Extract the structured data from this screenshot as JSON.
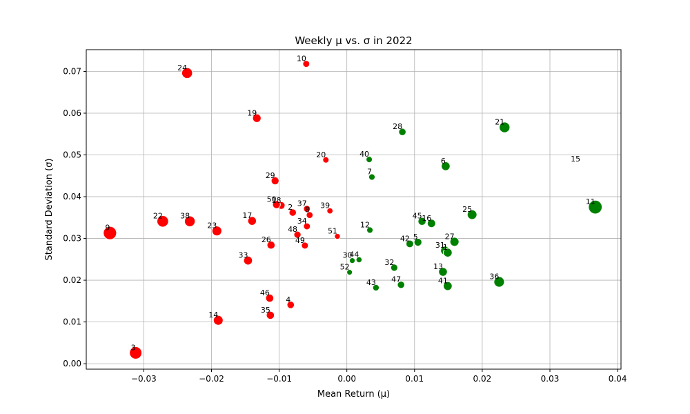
{
  "chart_data": {
    "type": "scatter",
    "title": "Weekly μ vs. σ in 2022",
    "xlabel": "Mean Return (μ)",
    "ylabel": "Standard Deviation (σ)",
    "xlim": [
      -0.0385,
      0.0405
    ],
    "ylim": [
      -0.0013,
      0.0752
    ],
    "grid": true,
    "x_ticks": [
      -0.03,
      -0.02,
      -0.01,
      0.0,
      0.01,
      0.02,
      0.03,
      0.04
    ],
    "x_tick_labels": [
      "−0.03",
      "−0.02",
      "−0.01",
      "0.00",
      "0.01",
      "0.02",
      "0.03",
      "0.04"
    ],
    "y_ticks": [
      0.0,
      0.01,
      0.02,
      0.03,
      0.04,
      0.05,
      0.06,
      0.07
    ],
    "y_tick_labels": [
      "0.00",
      "0.01",
      "0.02",
      "0.03",
      "0.04",
      "0.05",
      "0.06",
      "0.07"
    ],
    "colors": {
      "positive": "#008000",
      "negative": "#ff0000"
    },
    "points": [
      {
        "label": "2",
        "x": -0.008,
        "y": 0.0362
      },
      {
        "label": "3",
        "x": -0.0312,
        "y": 0.0026
      },
      {
        "label": "4",
        "x": -0.0083,
        "y": 0.0141
      },
      {
        "label": "5",
        "x": 0.0105,
        "y": 0.0291
      },
      {
        "label": "6",
        "x": 0.0146,
        "y": 0.0473
      },
      {
        "label": "7",
        "x": 0.0037,
        "y": 0.0447
      },
      {
        "label": "8",
        "x": -0.0055,
        "y": 0.0356
      },
      {
        "label": "9",
        "x": -0.035,
        "y": 0.0313
      },
      {
        "label": "10",
        "x": -0.006,
        "y": 0.0718
      },
      {
        "label": "11",
        "x": 0.0367,
        "y": 0.0375
      },
      {
        "label": "12",
        "x": 0.0034,
        "y": 0.032
      },
      {
        "label": "13",
        "x": 0.0142,
        "y": 0.022
      },
      {
        "label": "14",
        "x": -0.019,
        "y": 0.0104
      },
      {
        "label": "15",
        "x": 0.0345,
        "y": 0.0478
      },
      {
        "label": "16",
        "x": 0.0125,
        "y": 0.0336
      },
      {
        "label": "17",
        "x": -0.014,
        "y": 0.0342
      },
      {
        "label": "18",
        "x": -0.0097,
        "y": 0.0379
      },
      {
        "label": "19",
        "x": -0.0133,
        "y": 0.0588
      },
      {
        "label": "20",
        "x": -0.0031,
        "y": 0.0488
      },
      {
        "label": "21",
        "x": 0.0233,
        "y": 0.0566
      },
      {
        "label": "22",
        "x": -0.0272,
        "y": 0.0341
      },
      {
        "label": "23",
        "x": -0.0192,
        "y": 0.0318
      },
      {
        "label": "24",
        "x": -0.0236,
        "y": 0.0696
      },
      {
        "label": "25",
        "x": 0.0185,
        "y": 0.0357
      },
      {
        "label": "26",
        "x": -0.0112,
        "y": 0.0284
      },
      {
        "label": "27",
        "x": 0.0159,
        "y": 0.0292
      },
      {
        "label": "28",
        "x": 0.0082,
        "y": 0.0555
      },
      {
        "label": "29",
        "x": -0.0106,
        "y": 0.0438
      },
      {
        "label": "30",
        "x": 0.0008,
        "y": 0.0247
      },
      {
        "label": "31",
        "x": 0.0145,
        "y": 0.0271
      },
      {
        "label": "32",
        "x": 0.007,
        "y": 0.023
      },
      {
        "label": "33",
        "x": -0.0146,
        "y": 0.0247
      },
      {
        "label": "34",
        "x": -0.0059,
        "y": 0.0329
      },
      {
        "label": "35",
        "x": -0.0113,
        "y": 0.0116
      },
      {
        "label": "36",
        "x": 0.0225,
        "y": 0.0196
      },
      {
        "label": "37",
        "x": -0.0059,
        "y": 0.0371
      },
      {
        "label": "38",
        "x": -0.0232,
        "y": 0.0341
      },
      {
        "label": "39",
        "x": -0.0025,
        "y": 0.0366
      },
      {
        "label": "40",
        "x": 0.0033,
        "y": 0.0489
      },
      {
        "label": "41",
        "x": 0.0149,
        "y": 0.0186
      },
      {
        "label": "42",
        "x": 0.0093,
        "y": 0.0287
      },
      {
        "label": "43",
        "x": 0.0043,
        "y": 0.0182
      },
      {
        "label": "44",
        "x": 0.0018,
        "y": 0.0249
      },
      {
        "label": "45",
        "x": 0.0111,
        "y": 0.0341
      },
      {
        "label": "46",
        "x": -0.0114,
        "y": 0.0157
      },
      {
        "label": "47",
        "x": 0.008,
        "y": 0.0189
      },
      {
        "label": "48",
        "x": -0.0073,
        "y": 0.0309
      },
      {
        "label": "49",
        "x": -0.0062,
        "y": 0.0283
      },
      {
        "label": "50",
        "x": -0.0104,
        "y": 0.0381
      },
      {
        "label": "51",
        "x": -0.0014,
        "y": 0.0305
      },
      {
        "label": "52",
        "x": 0.0004,
        "y": 0.0219
      },
      {
        "label": "1",
        "x": 0.0149,
        "y": 0.0266
      }
    ]
  }
}
